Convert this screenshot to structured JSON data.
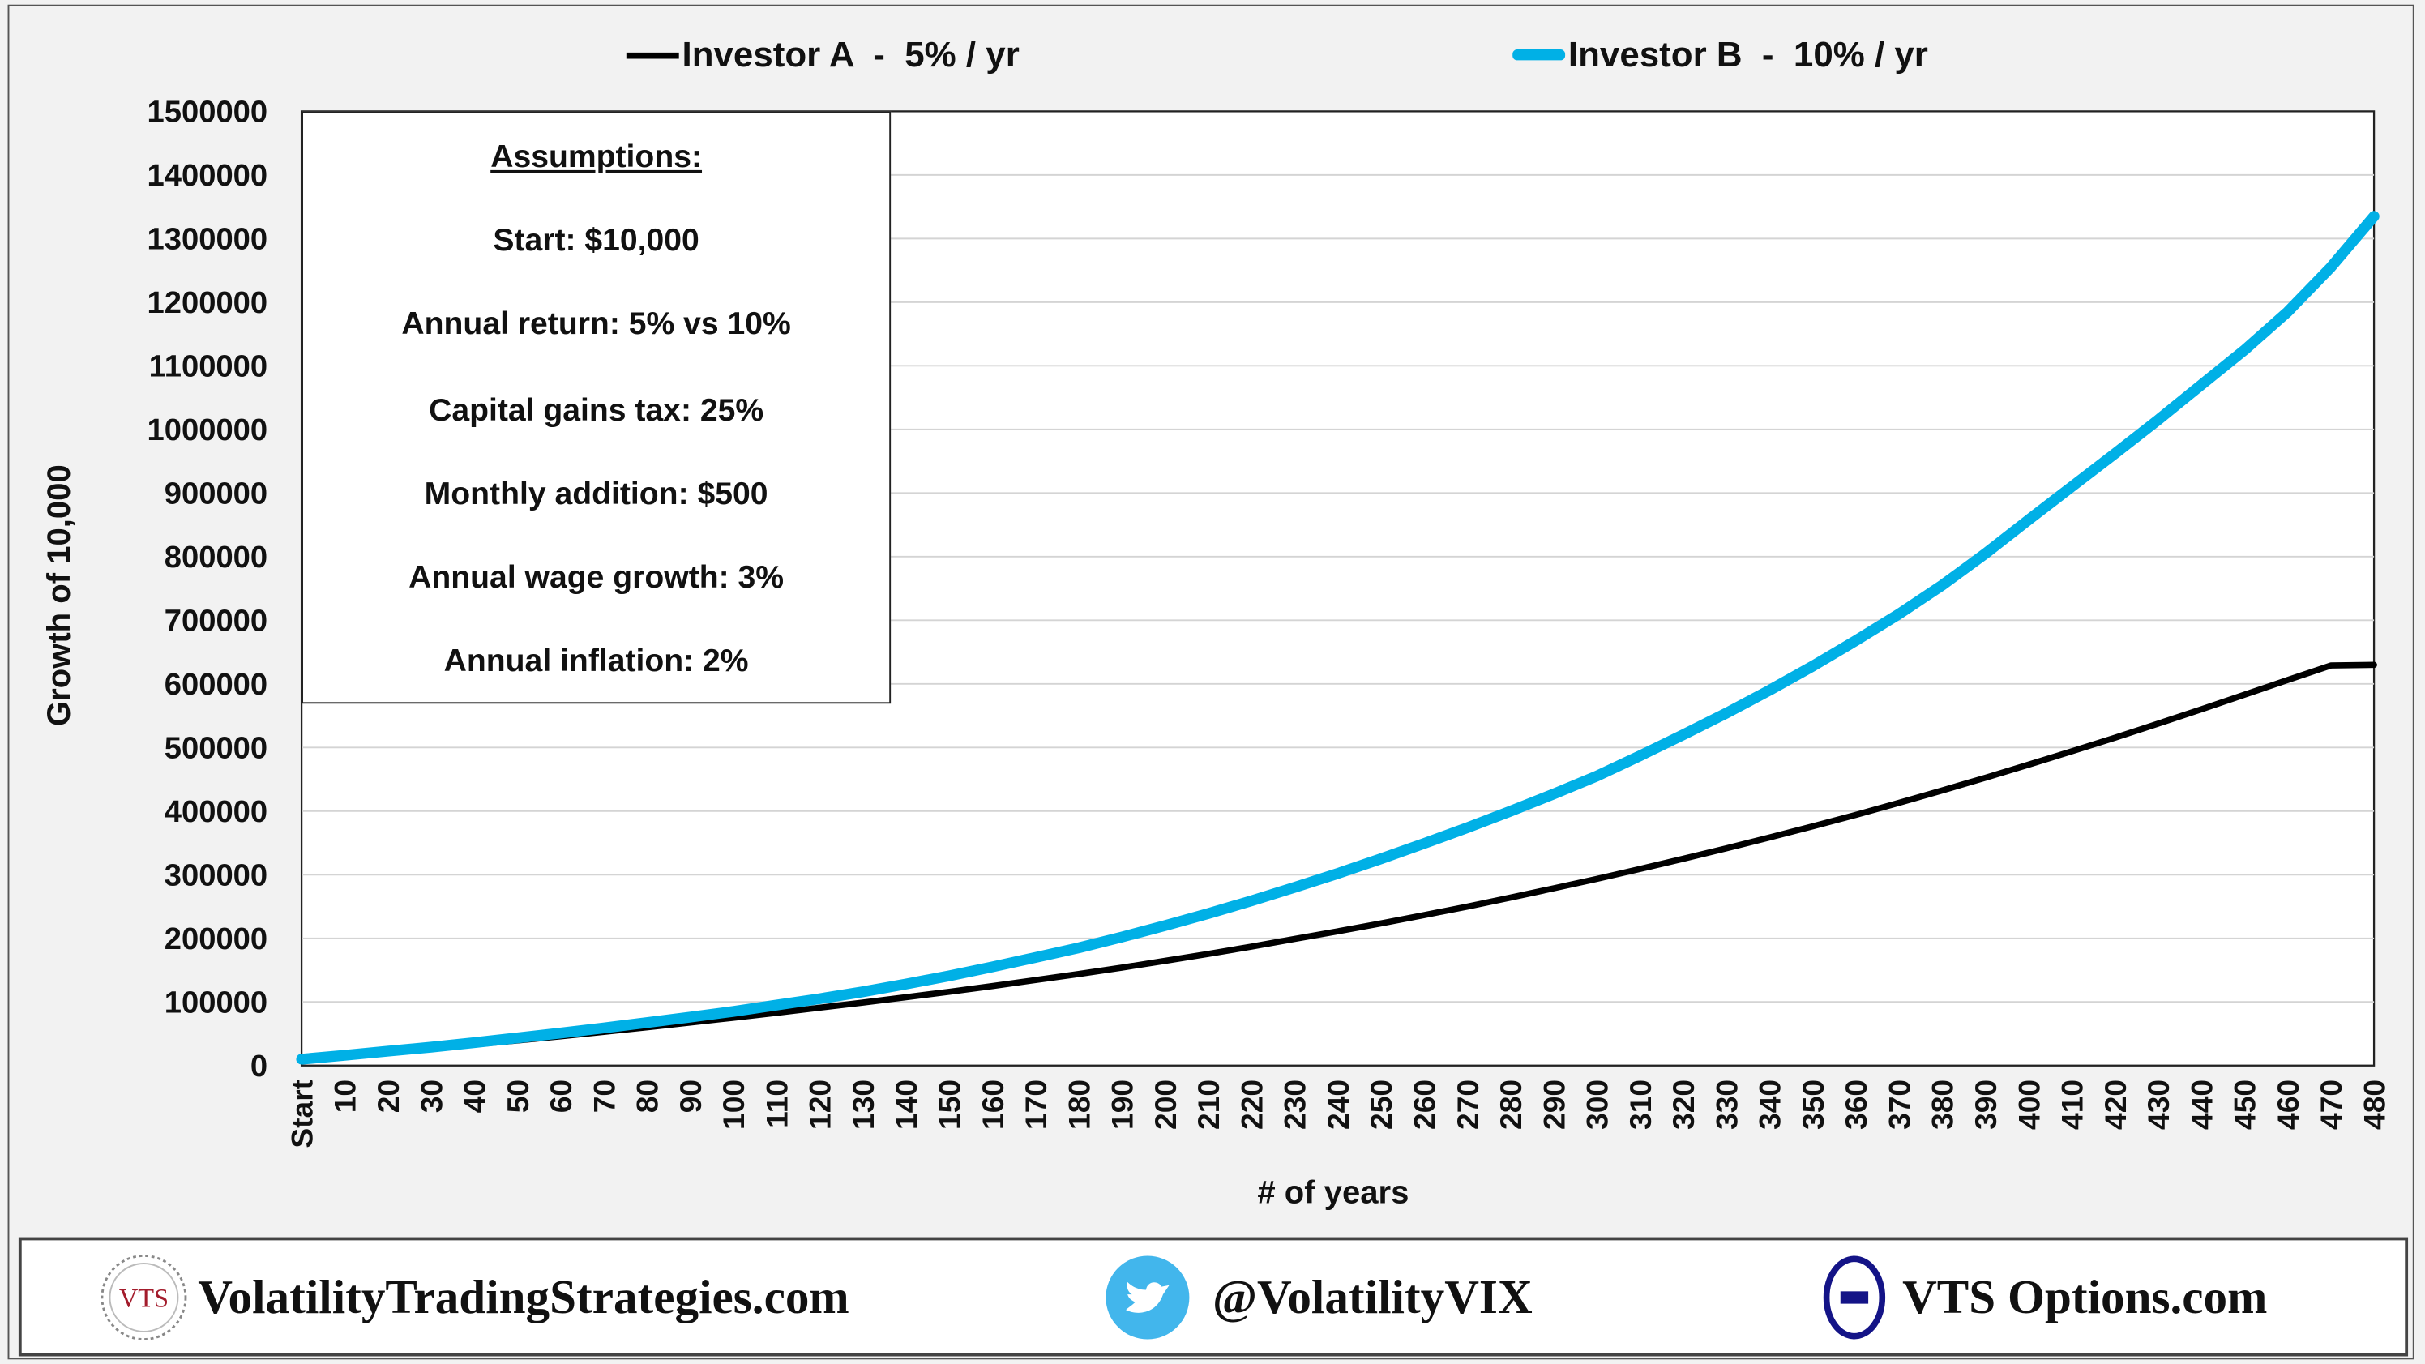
{
  "chart_data": {
    "type": "line",
    "title": "",
    "xlabel": "# of years",
    "ylabel": "Growth of 10,000",
    "ylim": [
      0,
      1500000
    ],
    "yticks": [
      "0",
      "100000",
      "200000",
      "300000",
      "400000",
      "500000",
      "600000",
      "700000",
      "800000",
      "900000",
      "1000000",
      "1100000",
      "1200000",
      "1300000",
      "1400000",
      "1500000"
    ],
    "x": [
      0,
      10,
      20,
      30,
      40,
      50,
      60,
      70,
      80,
      90,
      100,
      110,
      120,
      130,
      140,
      150,
      160,
      170,
      180,
      190,
      200,
      210,
      220,
      230,
      240,
      250,
      260,
      270,
      280,
      290,
      300,
      310,
      320,
      330,
      340,
      350,
      360,
      370,
      380,
      390,
      400,
      410,
      420,
      430,
      440,
      450,
      460,
      470,
      480
    ],
    "xtick_labels": [
      "Start",
      "10",
      "20",
      "30",
      "40",
      "50",
      "60",
      "70",
      "80",
      "90",
      "100",
      "110",
      "120",
      "130",
      "140",
      "150",
      "160",
      "170",
      "180",
      "190",
      "200",
      "210",
      "220",
      "230",
      "240",
      "250",
      "260",
      "270",
      "280",
      "290",
      "300",
      "310",
      "320",
      "330",
      "340",
      "350",
      "360",
      "370",
      "380",
      "390",
      "400",
      "410",
      "420",
      "430",
      "440",
      "450",
      "460",
      "470",
      "480"
    ],
    "grid": "horizontal",
    "legend_position": "top",
    "series": [
      {
        "name": "Investor A  -  5% / yr",
        "color": "#000000",
        "values": [
          10000,
          15500,
          21000,
          27000,
          33000,
          39500,
          46000,
          53000,
          60000,
          67500,
          75000,
          83000,
          91000,
          99000,
          107500,
          116000,
          125000,
          134500,
          144000,
          154000,
          164500,
          175500,
          187000,
          199000,
          211000,
          223500,
          236500,
          250000,
          264000,
          278500,
          293500,
          309000,
          325000,
          341500,
          358500,
          376000,
          394000,
          413000,
          432500,
          452500,
          473000,
          494000,
          515500,
          537500,
          560000,
          583000,
          606000,
          629000,
          630000
        ]
      },
      {
        "name": "Investor B  -  10% / yr",
        "color": "#00b0e6",
        "values": [
          10000,
          16000,
          22500,
          29000,
          36000,
          43500,
          51000,
          59000,
          67500,
          76000,
          85000,
          95000,
          105000,
          116000,
          128000,
          141000,
          155000,
          170000,
          185000,
          202000,
          220000,
          239000,
          259000,
          280000,
          302000,
          325000,
          349000,
          374000,
          400000,
          427000,
          455000,
          487000,
          520000,
          554000,
          590000,
          628000,
          668000,
          710000,
          755000,
          805000,
          858000,
          910000,
          962000,
          1015000,
          1070000,
          1125000,
          1185000,
          1255000,
          1335000
        ]
      }
    ]
  },
  "assumptions": {
    "title": "Assumptions:",
    "items": [
      "Start:  $10,000",
      "Annual return:  5% vs 10%",
      "Capital gains tax:  25%",
      "Monthly addition:  $500",
      "Annual wage growth:  3%",
      "Annual inflation:  2%"
    ]
  },
  "footer": {
    "logo_text": "VTS",
    "website": "VolatilityTradingStrategies.com",
    "twitter": "@VolatilityVIX",
    "options_site": "VTS Options.com"
  }
}
